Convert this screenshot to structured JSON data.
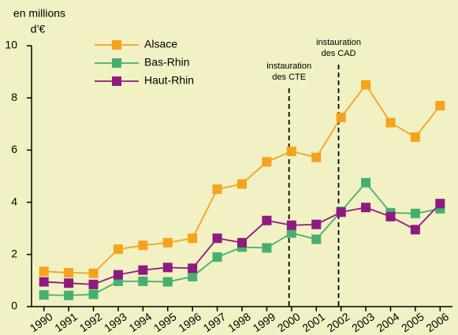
{
  "chart_data": {
    "type": "line",
    "ylabel": [
      "en millions",
      "d’€"
    ],
    "x": [
      1990,
      1991,
      1992,
      1993,
      1994,
      1995,
      1996,
      1997,
      1998,
      1999,
      2000,
      2001,
      2002,
      2003,
      2004,
      2005,
      2006
    ],
    "xlim": [
      1989.5,
      2006.5
    ],
    "xticks": [
      1990,
      1991,
      1992,
      1993,
      1994,
      1995,
      1996,
      1997,
      1998,
      1999,
      2000,
      2001,
      2002,
      2003,
      2004,
      2005,
      2006
    ],
    "ylim": [
      0,
      10
    ],
    "yticks": [
      0,
      2,
      4,
      6,
      8,
      10
    ],
    "legend": "top-left",
    "series": [
      {
        "name": "Alsace",
        "color": "#f5a21e",
        "values": [
          1.35,
          1.3,
          1.28,
          2.2,
          2.35,
          2.45,
          2.62,
          4.5,
          4.7,
          5.55,
          5.95,
          5.72,
          7.25,
          8.5,
          7.05,
          6.5,
          7.7
        ]
      },
      {
        "name": "Bas-Rhin",
        "color": "#45b06e",
        "values": [
          0.45,
          0.43,
          0.47,
          0.97,
          0.97,
          0.95,
          1.15,
          1.9,
          2.28,
          2.25,
          2.82,
          2.58,
          3.65,
          4.75,
          3.6,
          3.57,
          3.75
        ]
      },
      {
        "name": "Haut-Rhin",
        "color": "#8e1a80",
        "values": [
          0.95,
          0.9,
          0.85,
          1.22,
          1.4,
          1.5,
          1.47,
          2.62,
          2.45,
          3.3,
          3.12,
          3.15,
          3.62,
          3.8,
          3.45,
          2.95,
          3.95
        ]
      }
    ],
    "annotations": [
      {
        "text": [
          "instauration",
          "des CTE"
        ],
        "x": 1999.9
      },
      {
        "text": [
          "instauration",
          "des CAD"
        ],
        "x": 2001.9
      }
    ]
  }
}
